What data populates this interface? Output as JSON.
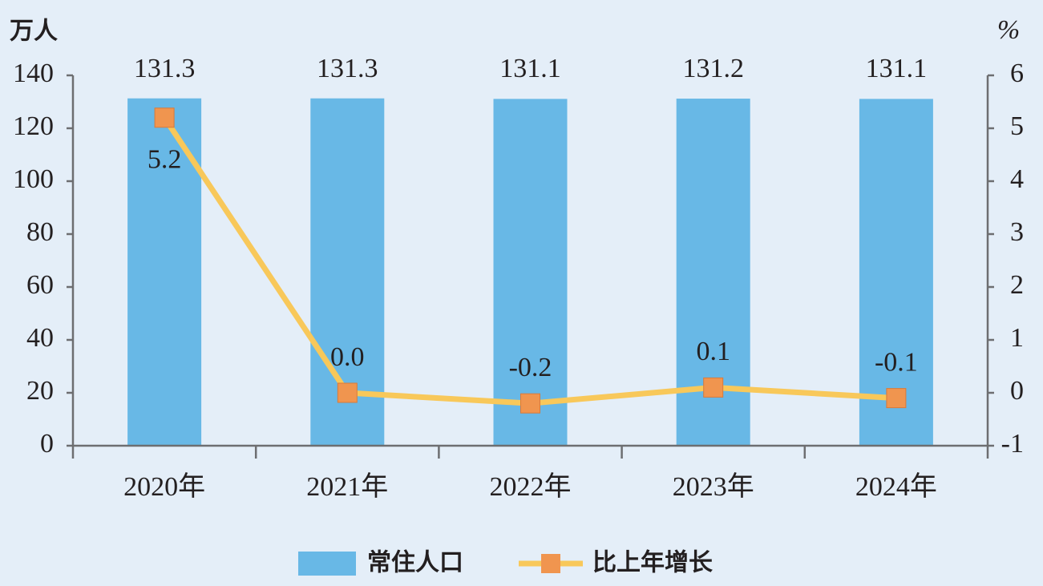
{
  "chart_data": {
    "type": "bar",
    "y_label": "万人",
    "y2_label": "%",
    "categories": [
      "2020年",
      "2021年",
      "2022年",
      "2023年",
      "2024年"
    ],
    "series": [
      {
        "name": "常住人口",
        "type": "bar",
        "color": "#68b8e6",
        "values": [
          131.3,
          131.3,
          131.1,
          131.2,
          131.1
        ]
      },
      {
        "name": "比上年增长",
        "type": "line",
        "axis": "y2",
        "color": "#f8c85a",
        "marker_color": "#f0954f",
        "values": [
          5.2,
          0,
          -0.2,
          0.1,
          -0.1
        ],
        "value_labels": [
          "5.2",
          "0.0",
          "-0.2",
          "0.1",
          "-0.1"
        ]
      }
    ],
    "ylim": [
      0,
      140
    ],
    "yticks": [
      0,
      20,
      40,
      60,
      80,
      100,
      120,
      140
    ],
    "y2lim": [
      -1,
      6
    ],
    "y2ticks": [
      -1,
      0,
      1,
      2,
      3,
      4,
      5,
      6
    ],
    "legend": "bottom"
  }
}
